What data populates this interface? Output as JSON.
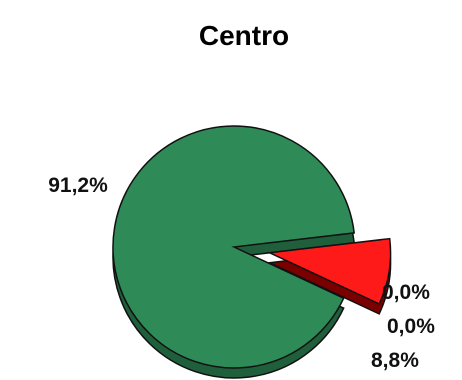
{
  "chart_data": {
    "type": "pie",
    "title": "Centro",
    "slices": [
      {
        "label": "91,2%",
        "value": 91.2,
        "color": "#2e8b57",
        "shade": "#1f5f3c",
        "exploded": false
      },
      {
        "label": "0,0%",
        "value": 0.0,
        "color": "#1f3fbf",
        "shade": "#14297c",
        "exploded": false
      },
      {
        "label": "0,0%",
        "value": 0.0,
        "color": "#f2e600",
        "shade": "#9a9200",
        "exploded": false
      },
      {
        "label": "8,8%",
        "value": 8.8,
        "color": "#ff1a1a",
        "shade": "#7a0000",
        "exploded": true
      }
    ],
    "legend": "none",
    "style": "3d"
  }
}
